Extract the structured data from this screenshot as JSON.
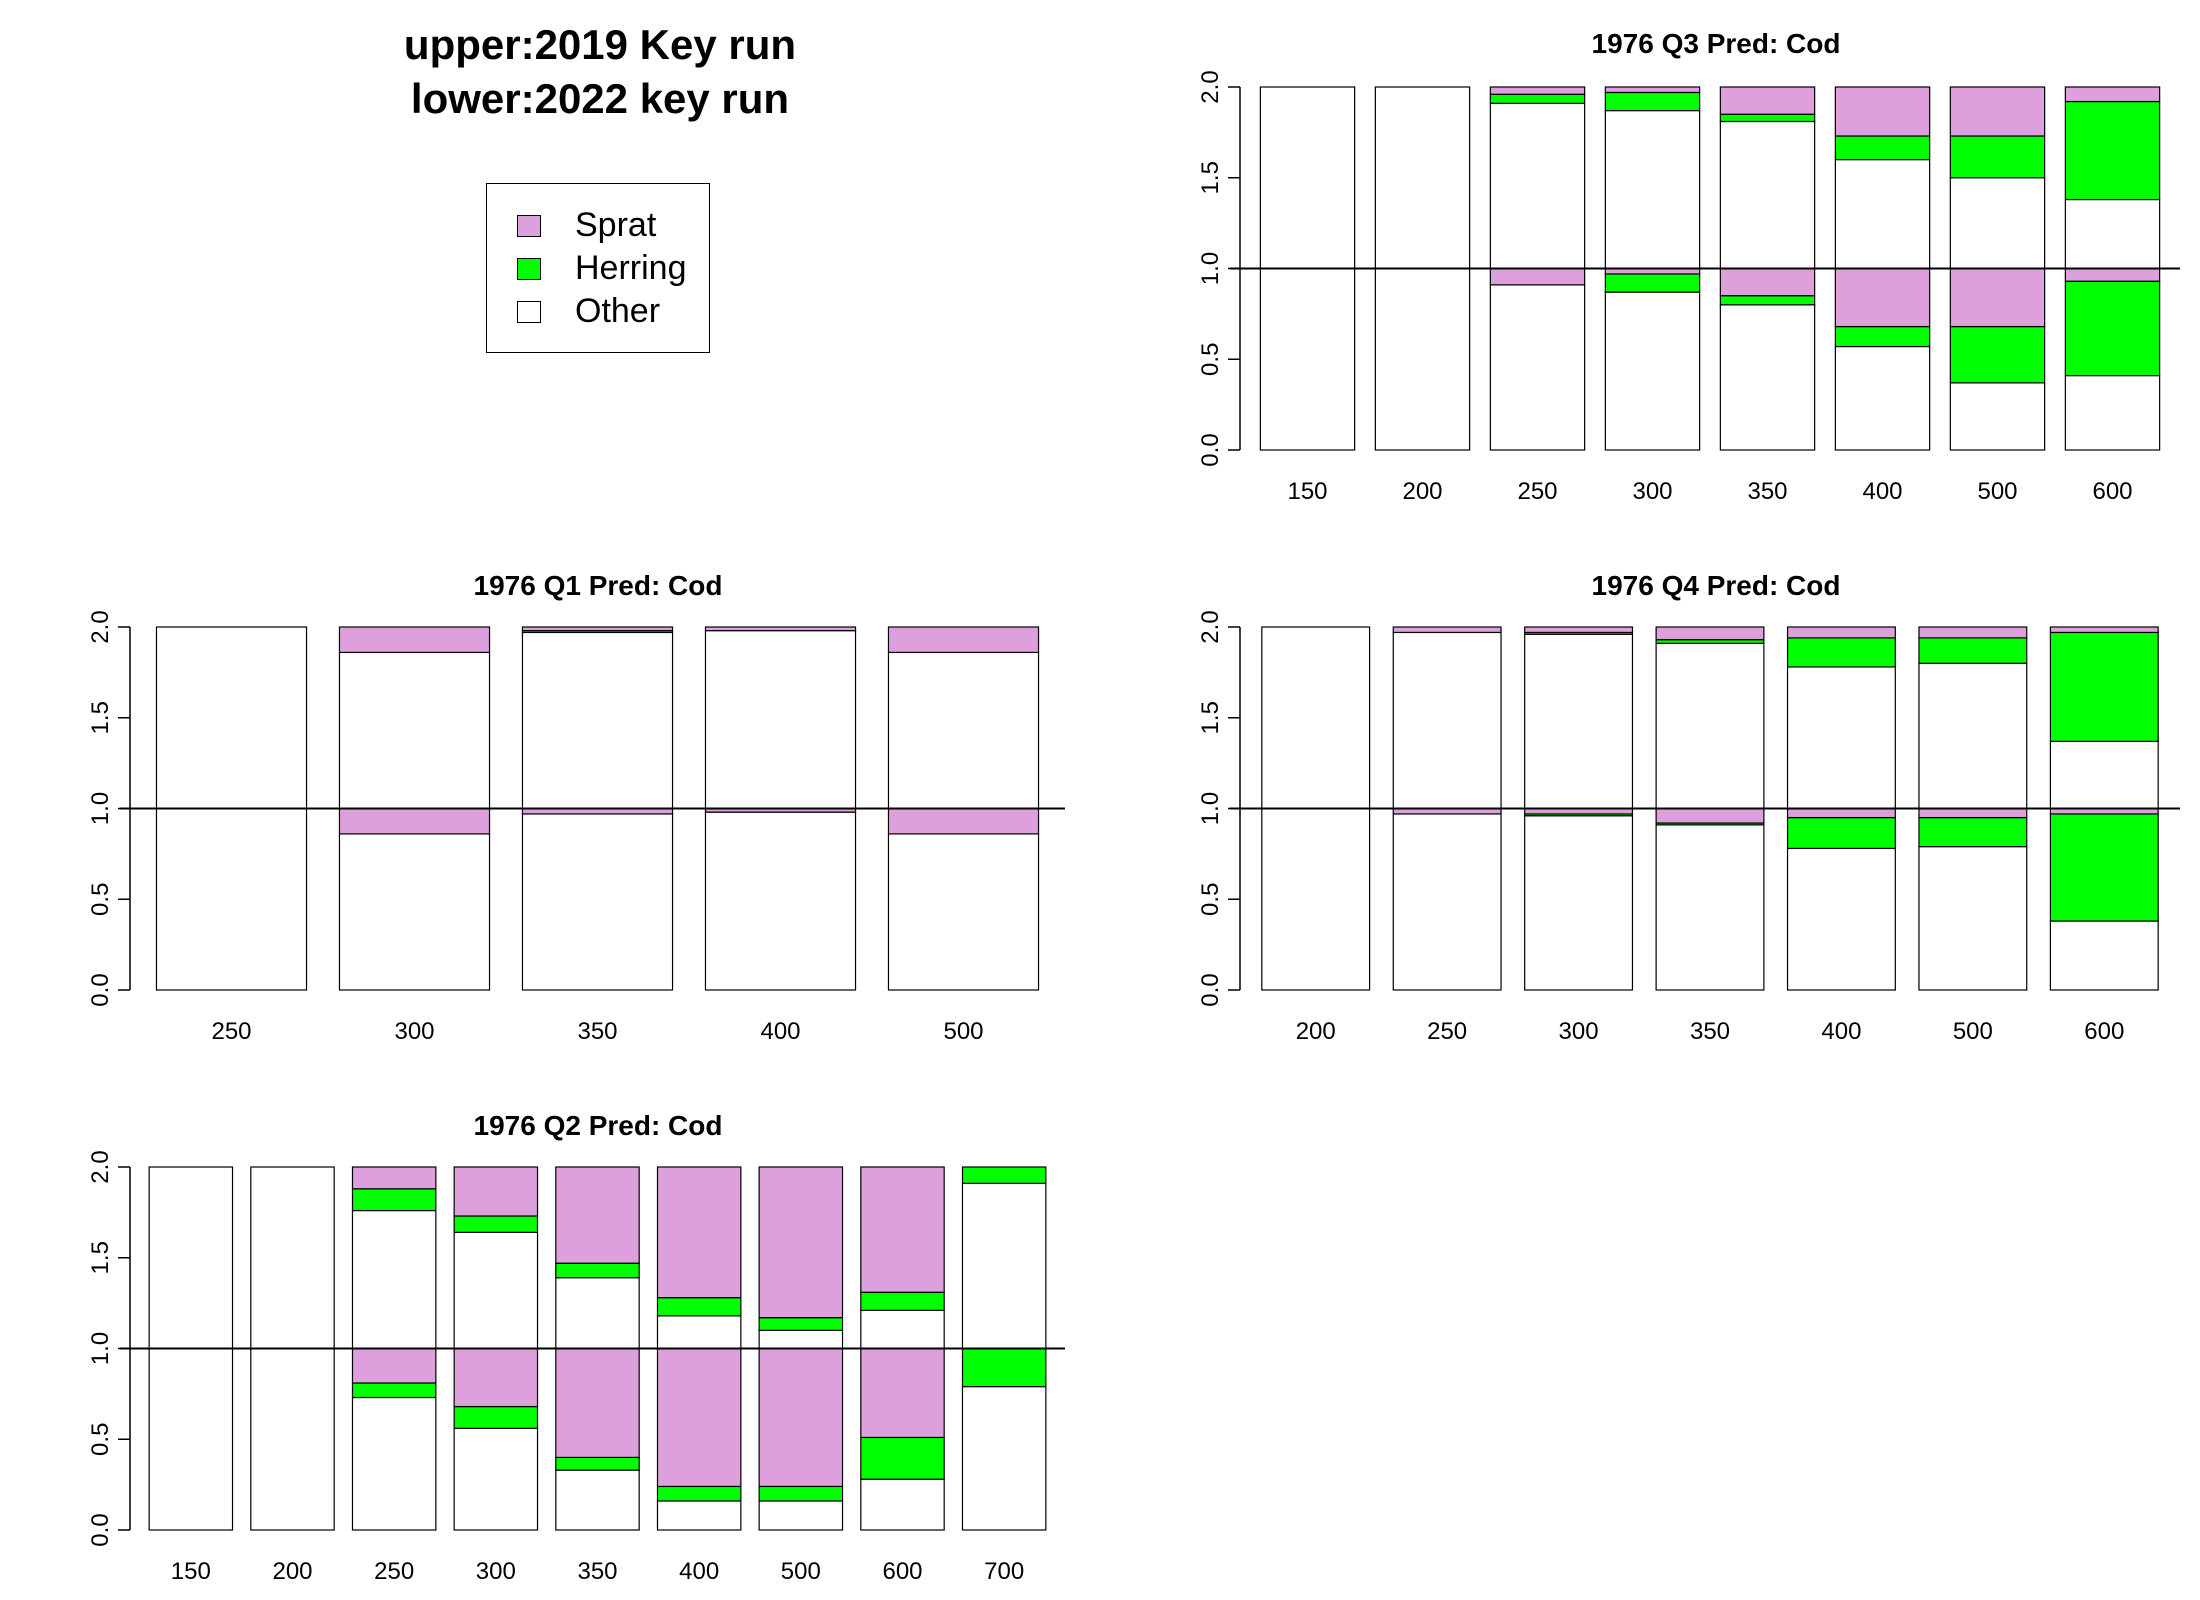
{
  "header": {
    "line1": "upper:2019 Key run",
    "line2": "lower:2022 key run"
  },
  "legend": {
    "items": [
      {
        "label": "Sprat",
        "color": "#dda0dd"
      },
      {
        "label": "Herring",
        "color": "#00ff00"
      },
      {
        "label": "Other",
        "color": "#ffffff"
      }
    ]
  },
  "chart_data": [
    {
      "type": "bar",
      "stacked": true,
      "title": "1976 Q3  Pred: Cod",
      "categories": [
        "150",
        "200",
        "250",
        "300",
        "350",
        "400",
        "500",
        "600"
      ],
      "ylim": [
        0,
        2
      ],
      "yticks": [
        "0.0",
        "0.5",
        "1.0",
        "1.5",
        "2.0"
      ],
      "reference_line": 1.0,
      "upper": {
        "Other": [
          1,
          1,
          0.91,
          0.87,
          0.81,
          0.6,
          0.5,
          0.38
        ],
        "Herring": [
          0,
          0,
          0.05,
          0.1,
          0.04,
          0.13,
          0.23,
          0.54
        ],
        "Sprat": [
          0,
          0,
          0.04,
          0.03,
          0.15,
          0.27,
          0.27,
          0.08
        ]
      },
      "lower": {
        "Other": [
          1,
          1,
          0.91,
          0.87,
          0.8,
          0.57,
          0.37,
          0.41
        ],
        "Herring": [
          0,
          0,
          0.0,
          0.1,
          0.05,
          0.11,
          0.31,
          0.52
        ],
        "Sprat": [
          0,
          0,
          0.09,
          0.03,
          0.15,
          0.32,
          0.32,
          0.07
        ]
      }
    },
    {
      "type": "bar",
      "stacked": true,
      "title": "1976 Q1  Pred: Cod",
      "categories": [
        "250",
        "300",
        "350",
        "400",
        "500"
      ],
      "ylim": [
        0,
        2
      ],
      "yticks": [
        "0.0",
        "0.5",
        "1.0",
        "1.5",
        "2.0"
      ],
      "reference_line": 1.0,
      "upper": {
        "Other": [
          1,
          0.86,
          0.97,
          0.98,
          0.86
        ],
        "Herring": [
          0,
          0,
          0.01,
          0,
          0
        ],
        "Sprat": [
          0,
          0.14,
          0.02,
          0.02,
          0.14
        ]
      },
      "lower": {
        "Other": [
          1,
          0.86,
          0.97,
          0.98,
          0.86
        ],
        "Herring": [
          0,
          0,
          0,
          0,
          0
        ],
        "Sprat": [
          0,
          0.14,
          0.03,
          0.02,
          0.14
        ]
      }
    },
    {
      "type": "bar",
      "stacked": true,
      "title": "1976 Q4  Pred: Cod",
      "categories": [
        "200",
        "250",
        "300",
        "350",
        "400",
        "500",
        "600"
      ],
      "ylim": [
        0,
        2
      ],
      "yticks": [
        "0.0",
        "0.5",
        "1.0",
        "1.5",
        "2.0"
      ],
      "reference_line": 1.0,
      "upper": {
        "Other": [
          1,
          0.97,
          0.96,
          0.91,
          0.78,
          0.8,
          0.37
        ],
        "Herring": [
          0,
          0,
          0.01,
          0.02,
          0.16,
          0.14,
          0.6
        ],
        "Sprat": [
          0,
          0.03,
          0.03,
          0.07,
          0.06,
          0.06,
          0.03
        ]
      },
      "lower": {
        "Other": [
          1,
          0.97,
          0.96,
          0.91,
          0.78,
          0.79,
          0.38
        ],
        "Herring": [
          0,
          0,
          0.01,
          0.01,
          0.17,
          0.16,
          0.59
        ],
        "Sprat": [
          0,
          0.03,
          0.03,
          0.08,
          0.05,
          0.05,
          0.03
        ]
      }
    },
    {
      "type": "bar",
      "stacked": true,
      "title": "1976 Q2  Pred: Cod",
      "categories": [
        "150",
        "200",
        "250",
        "300",
        "350",
        "400",
        "500",
        "600",
        "700"
      ],
      "ylim": [
        0,
        2
      ],
      "yticks": [
        "0.0",
        "0.5",
        "1.0",
        "1.5",
        "2.0"
      ],
      "reference_line": 1.0,
      "upper": {
        "Other": [
          1,
          1,
          0.76,
          0.64,
          0.39,
          0.18,
          0.1,
          0.21,
          0.91
        ],
        "Herring": [
          0,
          0,
          0.12,
          0.09,
          0.08,
          0.1,
          0.07,
          0.1,
          0.09
        ],
        "Sprat": [
          0,
          0,
          0.12,
          0.27,
          0.53,
          0.72,
          0.83,
          0.69,
          0.0
        ]
      },
      "lower": {
        "Other": [
          1,
          1,
          0.73,
          0.56,
          0.33,
          0.16,
          0.16,
          0.28,
          0.79
        ],
        "Herring": [
          0,
          0,
          0.08,
          0.12,
          0.07,
          0.08,
          0.08,
          0.23,
          0.21
        ],
        "Sprat": [
          0,
          0,
          0.19,
          0.32,
          0.6,
          0.76,
          0.76,
          0.49,
          0.0
        ]
      }
    }
  ]
}
